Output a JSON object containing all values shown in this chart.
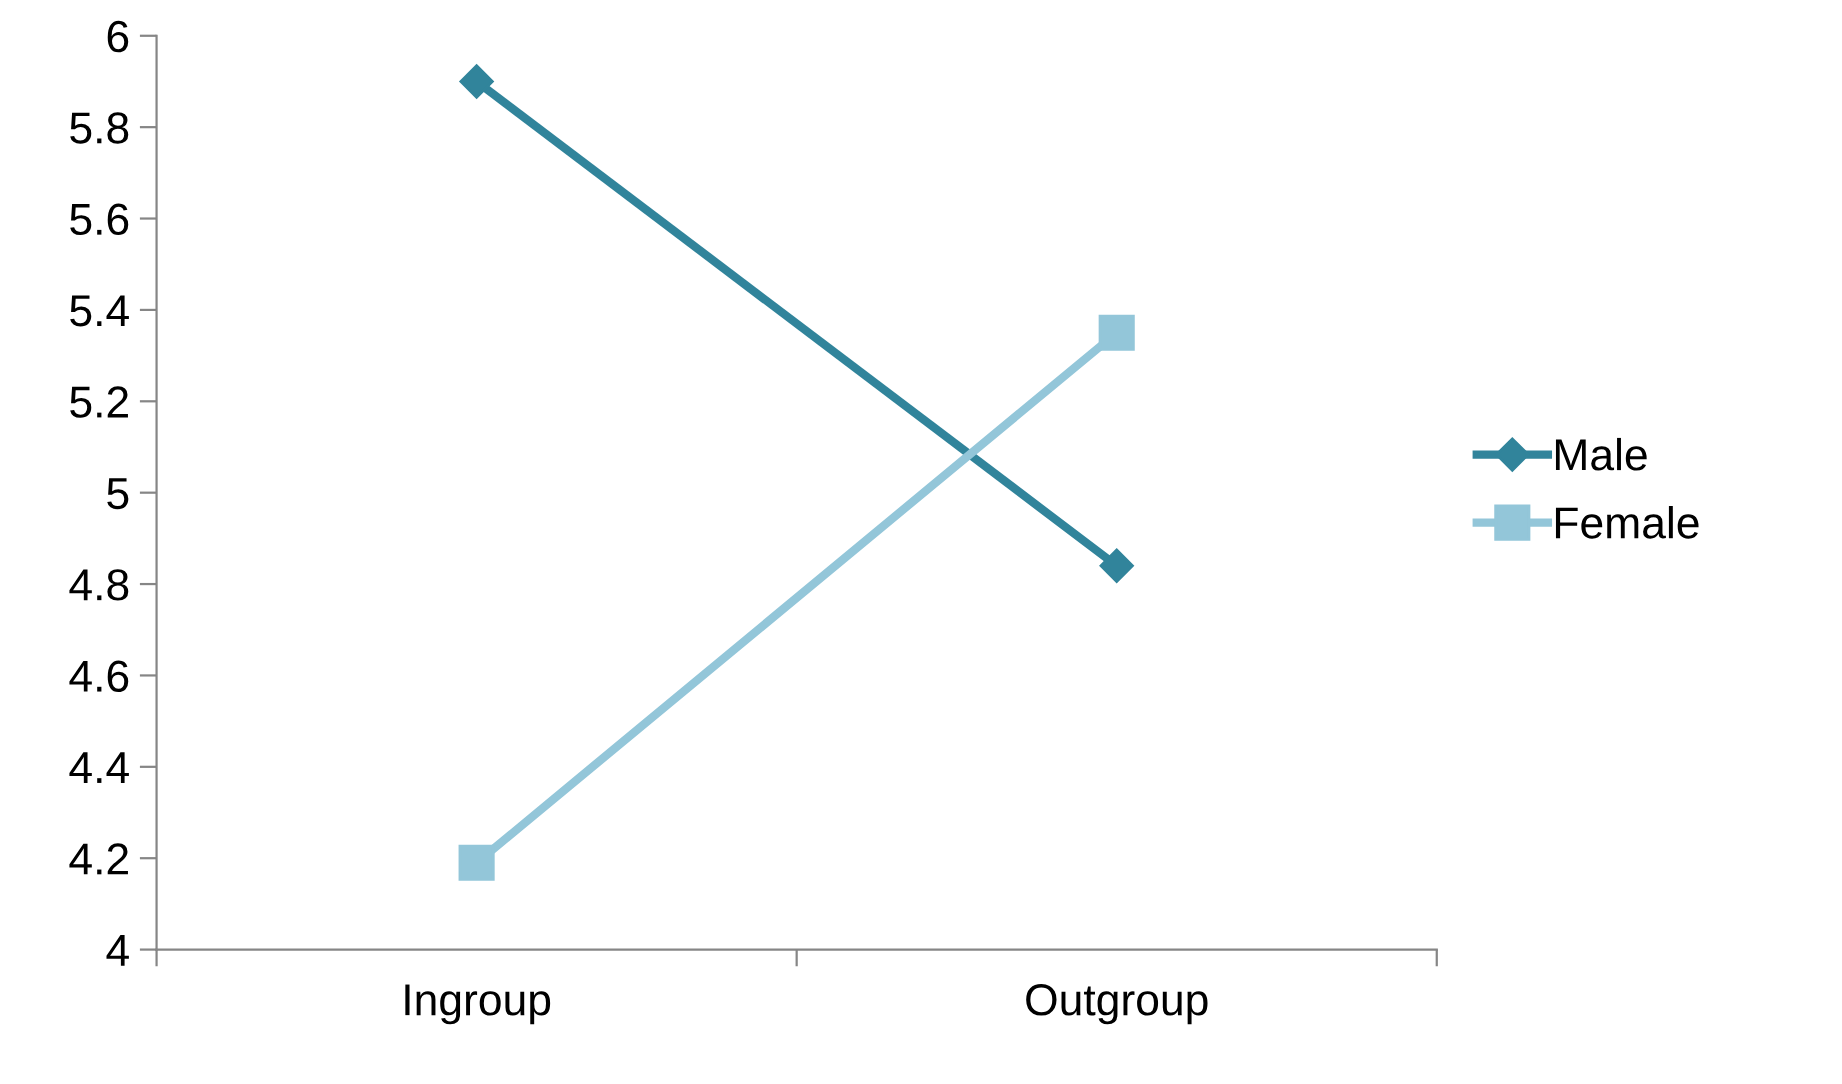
{
  "chart_data": {
    "type": "line",
    "categories": [
      "Ingroup",
      "Outgroup"
    ],
    "series": [
      {
        "name": "Male",
        "color": "#31849b",
        "values": [
          5.9,
          4.84
        ],
        "marker": "diamond"
      },
      {
        "name": "Female",
        "color": "#93c6d9",
        "values": [
          4.19,
          5.35
        ],
        "marker": "square"
      }
    ],
    "ylim": [
      4,
      6
    ],
    "yticks": [
      4,
      4.2,
      4.4,
      4.6,
      4.8,
      5,
      5.2,
      5.4,
      5.6,
      5.8,
      6
    ],
    "grid": false,
    "legend": "right",
    "line_style": "solid"
  }
}
